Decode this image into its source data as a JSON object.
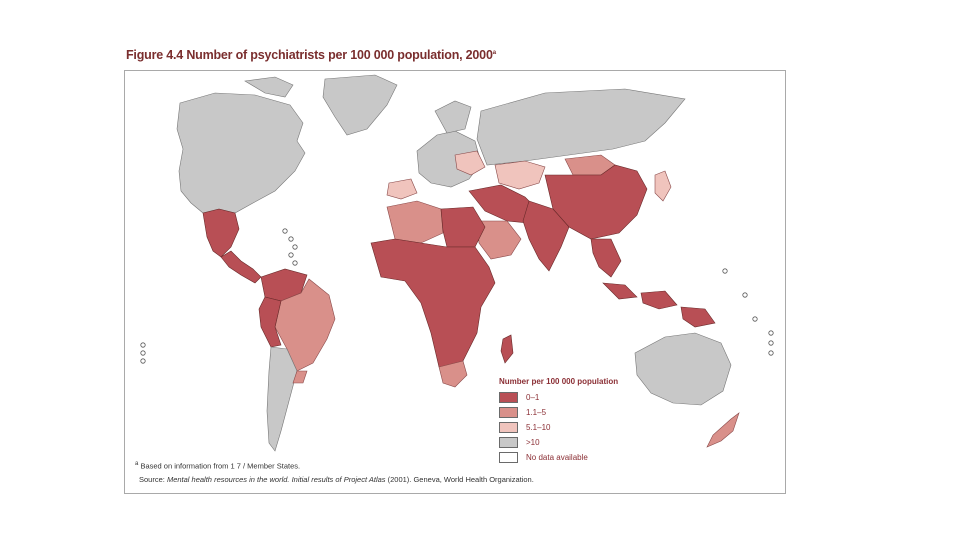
{
  "figure": {
    "title": "Figure 4.4  Number of psychiatrists per 100 000 population, 2000",
    "title_superscript": "a"
  },
  "legend": {
    "title": "Number per 100 000 population",
    "items": [
      {
        "label": "0–1",
        "color": "#b84f55"
      },
      {
        "label": "1.1–5",
        "color": "#d9908a"
      },
      {
        "label": "5.1–10",
        "color": "#f0c4bd"
      },
      {
        "label": ">10",
        "color": "#c8c8c8"
      },
      {
        "label": "No data available",
        "color": "#ffffff"
      }
    ]
  },
  "footnote": {
    "marker": "a",
    "text": "Based on information from 1 7 / Member States."
  },
  "source": {
    "prefix": "Source:",
    "italic": "Mental health resources in the world. Initial results of Project Atlas",
    "suffix": "(2001). Geneva, World Health Organization."
  },
  "colors": {
    "category_0_1": "#b84f55",
    "category_1_5": "#d9908a",
    "category_5_10": "#f0c4bd",
    "category_over_10": "#c8c8c8",
    "no_data": "#ffffff",
    "title_color": "#7a2e2e"
  }
}
